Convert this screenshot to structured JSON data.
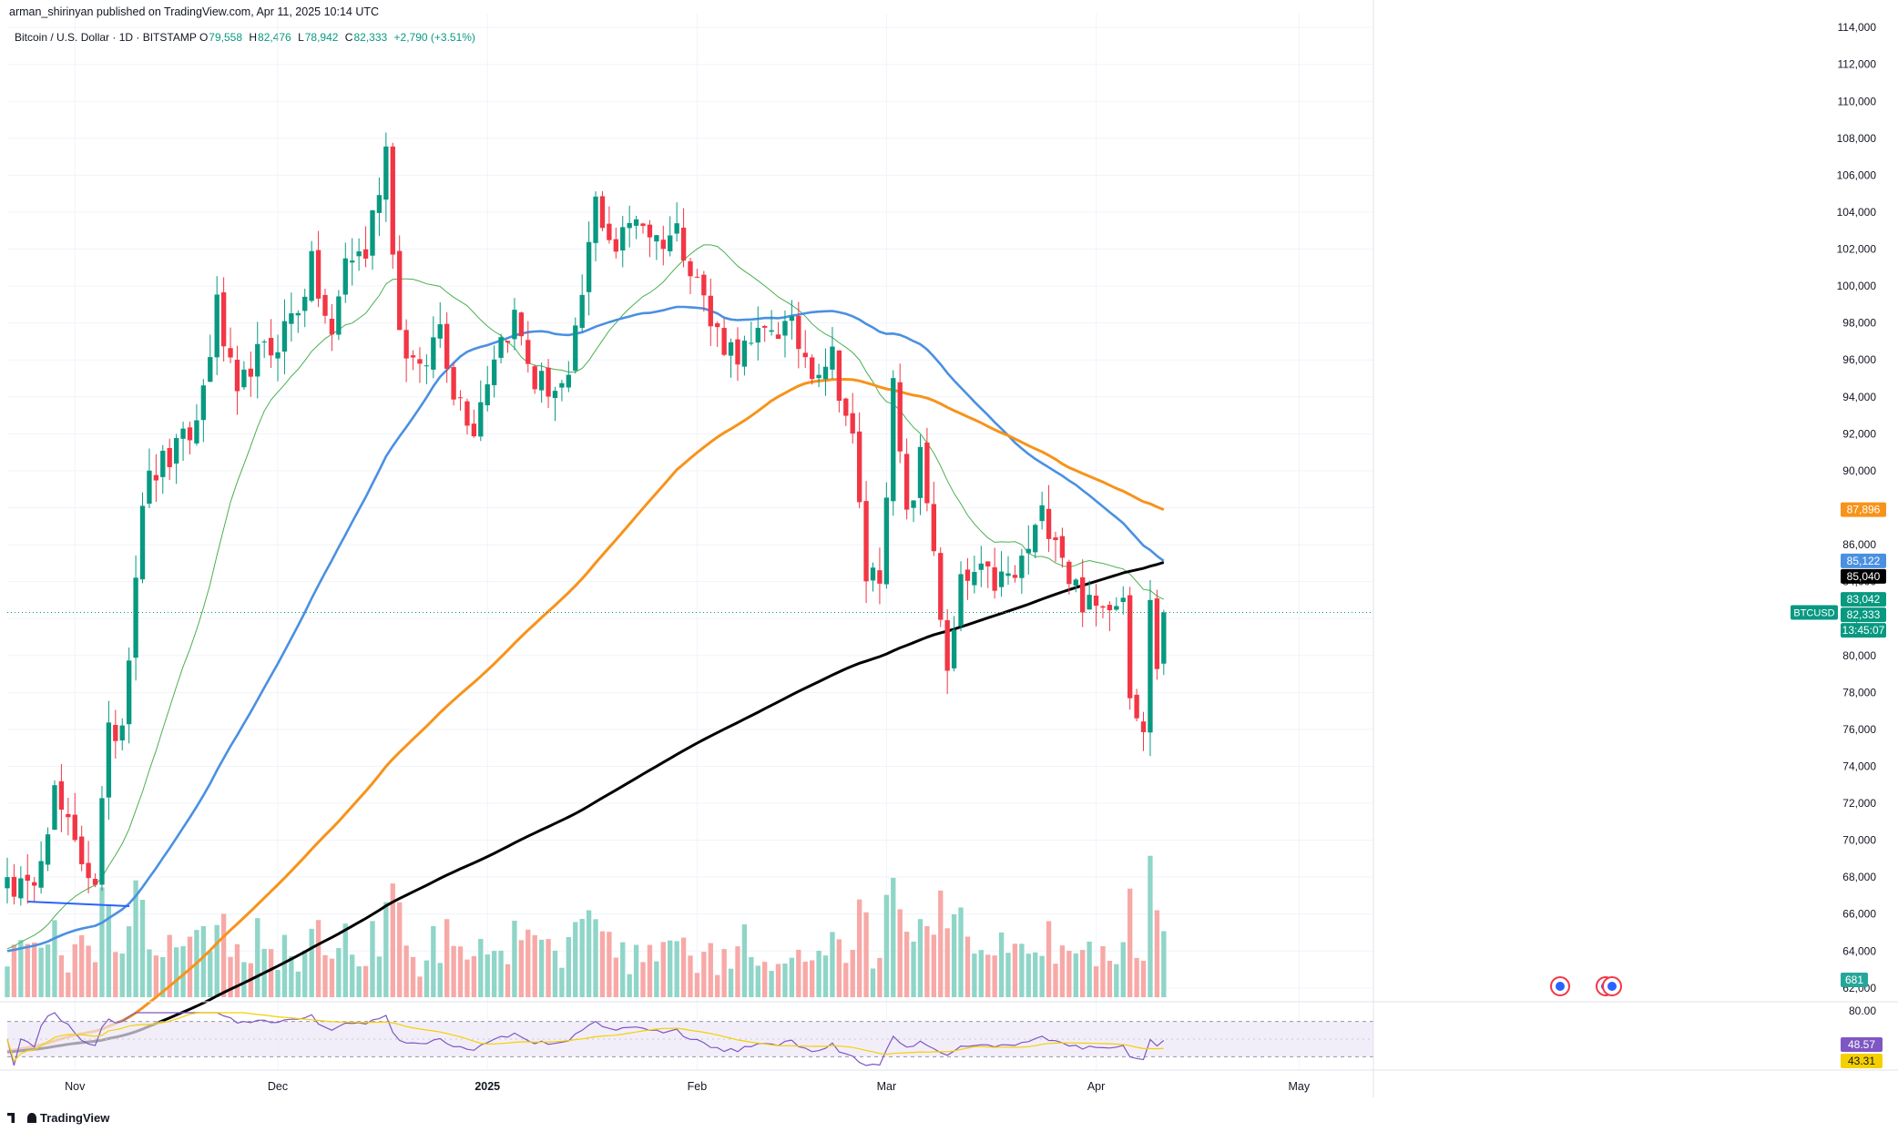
{
  "header": {
    "published": "arman_shirinyan published on TradingView.com, Apr 11, 2025 10:14 UTC"
  },
  "legend": {
    "symbol": "Bitcoin / U.S. Dollar · 1D · BITSTAMP",
    "o_label": "O",
    "o": "79,558",
    "h_label": "H",
    "h": "82,476",
    "l_label": "L",
    "l": "78,942",
    "c_label": "C",
    "c": "82,333",
    "change": "+2,790 (+3.51%)"
  },
  "brand": "TradingView",
  "colors": {
    "up": "#089981",
    "down": "#F23645",
    "up_vol": "#8FD5C8",
    "down_vol": "#F7A9A7",
    "ma20": "#4CAF50",
    "ma50": "#4A90E2",
    "ma100": "#F7931A",
    "ma200": "#000000",
    "rsi": "#7E57C2",
    "rsi_ma": "#F5D000",
    "rsi_band": "#EDE7F6"
  },
  "chart_data": {
    "type": "candlestick",
    "symbol": "BTCUSD",
    "interval": "1D",
    "x_range": [
      "2024-10-22",
      "2025-05-12"
    ],
    "y_range": [
      61500,
      114500
    ],
    "scale": "linear",
    "grid": true,
    "price_ticks": [
      62000,
      64000,
      66000,
      68000,
      70000,
      72000,
      74000,
      76000,
      78000,
      80000,
      82000,
      84000,
      86000,
      88000,
      90000,
      92000,
      94000,
      96000,
      98000,
      100000,
      102000,
      104000,
      106000,
      108000,
      110000,
      112000,
      114000
    ],
    "x_ticks": [
      {
        "date": "2024-11-01",
        "label": "Nov"
      },
      {
        "date": "2024-12-01",
        "label": "Dec"
      },
      {
        "date": "2025-01-01",
        "label": "2025"
      },
      {
        "date": "2025-02-01",
        "label": "Feb"
      },
      {
        "date": "2025-03-01",
        "label": "Mar"
      },
      {
        "date": "2025-04-01",
        "label": "Apr"
      },
      {
        "date": "2025-05-01",
        "label": "May"
      }
    ],
    "close_anchors": [
      [
        "2024-10-22",
        68000
      ],
      [
        "2024-10-25",
        67000
      ],
      [
        "2024-10-29",
        72500
      ],
      [
        "2024-11-01",
        69500
      ],
      [
        "2024-11-04",
        68000
      ],
      [
        "2024-11-06",
        75500
      ],
      [
        "2024-11-08",
        76500
      ],
      [
        "2024-11-11",
        88700
      ],
      [
        "2024-11-13",
        90000
      ],
      [
        "2024-11-16",
        91000
      ],
      [
        "2024-11-19",
        92500
      ],
      [
        "2024-11-22",
        98800
      ],
      [
        "2024-11-25",
        93500
      ],
      [
        "2024-11-27",
        95900
      ],
      [
        "2024-11-30",
        96500
      ],
      [
        "2024-12-04",
        99000
      ],
      [
        "2024-12-06",
        101000
      ],
      [
        "2024-12-09",
        97000
      ],
      [
        "2024-12-11",
        101500
      ],
      [
        "2024-12-14",
        101800
      ],
      [
        "2024-12-17",
        107500
      ],
      [
        "2024-12-19",
        97500
      ],
      [
        "2024-12-22",
        95000
      ],
      [
        "2024-12-25",
        98000
      ],
      [
        "2024-12-27",
        94500
      ],
      [
        "2024-12-30",
        92500
      ],
      [
        "2025-01-02",
        96500
      ],
      [
        "2025-01-05",
        98300
      ],
      [
        "2025-01-08",
        94800
      ],
      [
        "2025-01-11",
        94500
      ],
      [
        "2025-01-13",
        94500
      ],
      [
        "2025-01-17",
        104500
      ],
      [
        "2025-01-20",
        102000
      ],
      [
        "2025-01-23",
        104000
      ],
      [
        "2025-01-26",
        102500
      ],
      [
        "2025-01-29",
        103000
      ],
      [
        "2025-02-01",
        100600
      ],
      [
        "2025-02-03",
        97900
      ],
      [
        "2025-02-06",
        96600
      ],
      [
        "2025-02-09",
        96500
      ],
      [
        "2025-02-12",
        97900
      ],
      [
        "2025-02-15",
        97500
      ],
      [
        "2025-02-18",
        95700
      ],
      [
        "2025-02-21",
        96200
      ],
      [
        "2025-02-24",
        91500
      ],
      [
        "2025-02-26",
        84300
      ],
      [
        "2025-02-28",
        84500
      ],
      [
        "2025-03-02",
        94300
      ],
      [
        "2025-03-04",
        87200
      ],
      [
        "2025-03-06",
        90600
      ],
      [
        "2025-03-08",
        86000
      ],
      [
        "2025-03-10",
        78600
      ],
      [
        "2025-03-12",
        83700
      ],
      [
        "2025-03-14",
        84300
      ],
      [
        "2025-03-17",
        84000
      ],
      [
        "2025-03-20",
        84200
      ],
      [
        "2025-03-24",
        87500
      ],
      [
        "2025-03-26",
        86900
      ],
      [
        "2025-03-28",
        84300
      ],
      [
        "2025-03-31",
        82500
      ],
      [
        "2025-04-02",
        82500
      ],
      [
        "2025-04-03",
        83200
      ],
      [
        "2025-04-05",
        83500
      ],
      [
        "2025-04-06",
        78300
      ],
      [
        "2025-04-08",
        76300
      ],
      [
        "2025-04-09",
        82600
      ],
      [
        "2025-04-10",
        79600
      ],
      [
        "2025-04-11",
        82333
      ]
    ],
    "last_candle": {
      "date": "2025-04-11",
      "open": 79558,
      "high": 82476,
      "low": 78942,
      "close": 82333
    },
    "moving_averages": [
      {
        "length": 20,
        "last": 83042
      },
      {
        "length": 50,
        "last": 85122
      },
      {
        "length": 100,
        "last": 87896
      },
      {
        "length": 200,
        "last": 85040
      }
    ],
    "price_labels": [
      {
        "text": "87,896",
        "value": 87896,
        "color": "#F7931A"
      },
      {
        "text": "85,122",
        "value": 85122,
        "color": "#4A90E2"
      },
      {
        "text": "85,040",
        "value": 85040,
        "color": "#000000"
      },
      {
        "text": "83,042",
        "value": 83042,
        "color": "#089981"
      },
      {
        "text": "82,333",
        "value": 82333,
        "color": "#089981"
      }
    ],
    "current_tag": {
      "symbol": "BTCUSD",
      "price": "82,333",
      "countdown": "13:45:07"
    },
    "volume_label": "681",
    "rsi": {
      "length": 14,
      "levels": [
        70,
        30
      ],
      "axis_label": "80.00",
      "value": 48.57,
      "value_label": "48.57",
      "ma": 43.31,
      "ma_label": "43.31"
    }
  }
}
